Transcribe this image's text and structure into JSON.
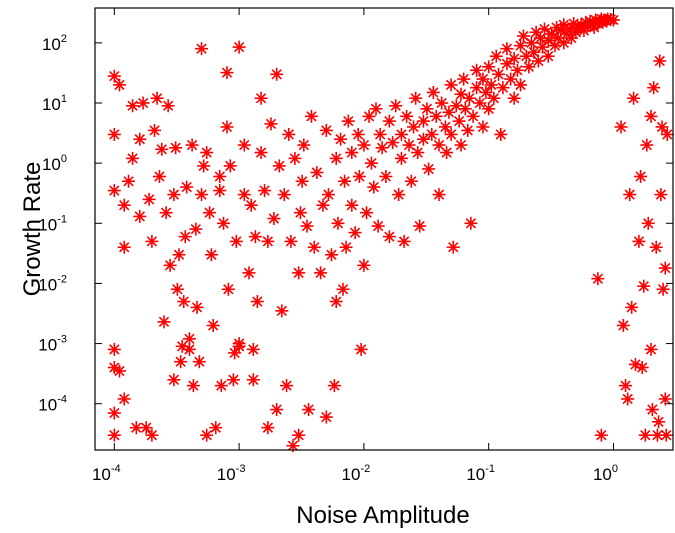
{
  "chart_data": {
    "type": "scatter",
    "title": "",
    "xlabel": "Noise Amplitude",
    "ylabel": "Growth Rate",
    "xscale": "log",
    "yscale": "log",
    "xlim": [
      7e-05,
      3
    ],
    "ylim": [
      1.7e-05,
      380
    ],
    "grid": false,
    "marker": "asterisk",
    "marker_color": "#ff0000",
    "x_ticks": [
      {
        "base": "10",
        "exp": "-4",
        "value": 0.0001
      },
      {
        "base": "10",
        "exp": "-3",
        "value": 0.001
      },
      {
        "base": "10",
        "exp": "-2",
        "value": 0.01
      },
      {
        "base": "10",
        "exp": "-1",
        "value": 0.1
      },
      {
        "base": "10",
        "exp": "0",
        "value": 1
      }
    ],
    "y_ticks": [
      {
        "base": "10",
        "exp": "-4",
        "value": 0.0001
      },
      {
        "base": "10",
        "exp": "-3",
        "value": 0.001
      },
      {
        "base": "10",
        "exp": "-2",
        "value": 0.01
      },
      {
        "base": "10",
        "exp": "-1",
        "value": 0.1
      },
      {
        "base": "10",
        "exp": "0",
        "value": 1
      },
      {
        "base": "10",
        "exp": "1",
        "value": 10
      },
      {
        "base": "10",
        "exp": "2",
        "value": 100
      }
    ],
    "series": [
      {
        "points": [
          [
            0.0001,
            28
          ],
          [
            0.0001,
            3
          ],
          [
            0.0001,
            0.35
          ],
          [
            0.0001,
            7e-05
          ],
          [
            0.0001,
            0.0008
          ],
          [
            0.0001,
            0.0004
          ],
          [
            0.0001,
            3e-05
          ],
          [
            0.00011,
            20
          ],
          [
            0.00011,
            0.00035
          ],
          [
            0.00012,
            0.00012
          ],
          [
            0.00012,
            0.04
          ],
          [
            0.00012,
            0.2
          ],
          [
            0.00013,
            0.5
          ],
          [
            0.00014,
            9
          ],
          [
            0.00014,
            1.2
          ],
          [
            0.00015,
            4e-05
          ],
          [
            0.00016,
            0.13
          ],
          [
            0.00016,
            2.5
          ],
          [
            0.00017,
            10
          ],
          [
            0.00018,
            4e-05
          ],
          [
            0.00019,
            0.25
          ],
          [
            0.0002,
            0.05
          ],
          [
            0.0002,
            3e-05
          ],
          [
            0.00021,
            3.5
          ],
          [
            0.00022,
            12
          ],
          [
            0.00023,
            0.6
          ],
          [
            0.00024,
            1.7
          ],
          [
            0.00025,
            0.0023
          ],
          [
            0.00026,
            0.15
          ],
          [
            0.00027,
            9
          ],
          [
            0.00028,
            0.02
          ],
          [
            0.0003,
            0.3
          ],
          [
            0.0003,
            0.00025
          ],
          [
            0.00031,
            1.8
          ],
          [
            0.00032,
            0.008
          ],
          [
            0.00033,
            0.03
          ],
          [
            0.00034,
            0.0005
          ],
          [
            0.00035,
            0.0009
          ],
          [
            0.00036,
            0.005
          ],
          [
            0.00037,
            0.06
          ],
          [
            0.00038,
            0.4
          ],
          [
            0.0004,
            0.0008
          ],
          [
            0.0004,
            0.0012
          ],
          [
            0.00042,
            2
          ],
          [
            0.00043,
            0.0002
          ],
          [
            0.00045,
            0.08
          ],
          [
            0.00046,
            0.004
          ],
          [
            0.00048,
            0.0005
          ],
          [
            0.0005,
            80
          ],
          [
            0.0005,
            0.3
          ],
          [
            0.00052,
            0.9
          ],
          [
            0.00055,
            1.5
          ],
          [
            0.00055,
            3e-05
          ],
          [
            0.00058,
            0.15
          ],
          [
            0.0006,
            0.03
          ],
          [
            0.00062,
            0.002
          ],
          [
            0.00065,
            4e-05
          ],
          [
            0.0007,
            0.6
          ],
          [
            0.0007,
            0.35
          ],
          [
            0.00072,
            0.0002
          ],
          [
            0.00075,
            0.1
          ],
          [
            0.0008,
            4
          ],
          [
            0.0008,
            32
          ],
          [
            0.00082,
            0.008
          ],
          [
            0.00085,
            0.9
          ],
          [
            0.0009,
            0.00025
          ],
          [
            0.00092,
            0.0007
          ],
          [
            0.00095,
            0.05
          ],
          [
            0.001,
            85
          ],
          [
            0.001,
            0.001
          ],
          [
            0.001,
            0.0009
          ],
          [
            0.0011,
            0.3
          ],
          [
            0.0011,
            2
          ],
          [
            0.0012,
            0.015
          ],
          [
            0.00125,
            0.2
          ],
          [
            0.0013,
            0.00025
          ],
          [
            0.0013,
            0.0008
          ],
          [
            0.00135,
            0.06
          ],
          [
            0.0014,
            0.005
          ],
          [
            0.0015,
            12
          ],
          [
            0.0015,
            1.5
          ],
          [
            0.0016,
            0.35
          ],
          [
            0.0017,
            4e-05
          ],
          [
            0.0017,
            0.05
          ],
          [
            0.0018,
            4.5
          ],
          [
            0.0019,
            0.12
          ],
          [
            0.002,
            8e-05
          ],
          [
            0.002,
            30
          ],
          [
            0.0021,
            0.9
          ],
          [
            0.0022,
            0.0035
          ],
          [
            0.0023,
            0.3
          ],
          [
            0.0024,
            0.0002
          ],
          [
            0.0025,
            3
          ],
          [
            0.0026,
            0.05
          ],
          [
            0.0027,
            2e-05
          ],
          [
            0.0028,
            1.2
          ],
          [
            0.003,
            3e-05
          ],
          [
            0.003,
            0.015
          ],
          [
            0.0031,
            0.15
          ],
          [
            0.0032,
            0.5
          ],
          [
            0.0033,
            2
          ],
          [
            0.0035,
            0.09
          ],
          [
            0.0036,
            8e-05
          ],
          [
            0.0038,
            6
          ],
          [
            0.004,
            0.04
          ],
          [
            0.0042,
            0.7
          ],
          [
            0.0045,
            0.015
          ],
          [
            0.0047,
            0.2
          ],
          [
            0.005,
            6e-05
          ],
          [
            0.005,
            3.5
          ],
          [
            0.0052,
            0.3
          ],
          [
            0.0055,
            0.03
          ],
          [
            0.0058,
            0.0002
          ],
          [
            0.006,
            1.2
          ],
          [
            0.006,
            0.005
          ],
          [
            0.0062,
            0.1
          ],
          [
            0.0065,
            2.5
          ],
          [
            0.0068,
            0.008
          ],
          [
            0.007,
            0.5
          ],
          [
            0.0072,
            0.04
          ],
          [
            0.0075,
            5
          ],
          [
            0.008,
            0.2
          ],
          [
            0.008,
            1.5
          ],
          [
            0.0085,
            0.07
          ],
          [
            0.009,
            3
          ],
          [
            0.0092,
            0.6
          ],
          [
            0.0095,
            0.0008
          ],
          [
            0.01,
            0.02
          ],
          [
            0.01,
            2
          ],
          [
            0.0105,
            0.15
          ],
          [
            0.011,
            6
          ],
          [
            0.0115,
            1
          ],
          [
            0.012,
            0.4
          ],
          [
            0.0125,
            8
          ],
          [
            0.013,
            0.09
          ],
          [
            0.0135,
            3
          ],
          [
            0.014,
            1.8
          ],
          [
            0.015,
            0.6
          ],
          [
            0.016,
            0.06
          ],
          [
            0.016,
            5
          ],
          [
            0.017,
            2.2
          ],
          [
            0.018,
            9
          ],
          [
            0.019,
            0.3
          ],
          [
            0.02,
            3
          ],
          [
            0.02,
            1.2
          ],
          [
            0.021,
            0.05
          ],
          [
            0.022,
            6
          ],
          [
            0.023,
            2
          ],
          [
            0.024,
            0.5
          ],
          [
            0.025,
            4
          ],
          [
            0.026,
            12
          ],
          [
            0.027,
            1.5
          ],
          [
            0.028,
            0.09
          ],
          [
            0.03,
            5
          ],
          [
            0.03,
            2.5
          ],
          [
            0.032,
            8
          ],
          [
            0.033,
            0.8
          ],
          [
            0.035,
            3
          ],
          [
            0.036,
            15
          ],
          [
            0.038,
            6
          ],
          [
            0.04,
            2
          ],
          [
            0.04,
            0.3
          ],
          [
            0.042,
            10
          ],
          [
            0.045,
            4
          ],
          [
            0.046,
            1.5
          ],
          [
            0.048,
            7
          ],
          [
            0.05,
            20
          ],
          [
            0.05,
            3
          ],
          [
            0.052,
            0.04
          ],
          [
            0.055,
            9
          ],
          [
            0.058,
            5
          ],
          [
            0.06,
            2
          ],
          [
            0.06,
            14
          ],
          [
            0.063,
            25
          ],
          [
            0.065,
            8
          ],
          [
            0.068,
            3.5
          ],
          [
            0.07,
            12
          ],
          [
            0.072,
            0.1
          ],
          [
            0.075,
            6
          ],
          [
            0.08,
            18
          ],
          [
            0.08,
            35
          ],
          [
            0.085,
            10
          ],
          [
            0.09,
            4
          ],
          [
            0.09,
            25
          ],
          [
            0.095,
            15
          ],
          [
            0.1,
            8
          ],
          [
            0.1,
            40
          ],
          [
            0.105,
            20
          ],
          [
            0.11,
            12
          ],
          [
            0.115,
            60
          ],
          [
            0.12,
            30
          ],
          [
            0.125,
            3
          ],
          [
            0.13,
            18
          ],
          [
            0.14,
            45
          ],
          [
            0.14,
            80
          ],
          [
            0.15,
            25
          ],
          [
            0.16,
            12
          ],
          [
            0.16,
            55
          ],
          [
            0.17,
            35
          ],
          [
            0.18,
            90
          ],
          [
            0.18,
            20
          ],
          [
            0.19,
            130
          ],
          [
            0.2,
            60
          ],
          [
            0.21,
            40
          ],
          [
            0.22,
            100
          ],
          [
            0.23,
            70
          ],
          [
            0.24,
            150
          ],
          [
            0.25,
            50
          ],
          [
            0.26,
            120
          ],
          [
            0.27,
            85
          ],
          [
            0.28,
            170
          ],
          [
            0.3,
            110
          ],
          [
            0.3,
            60
          ],
          [
            0.32,
            140
          ],
          [
            0.34,
            90
          ],
          [
            0.35,
            180
          ],
          [
            0.36,
            120
          ],
          [
            0.38,
            160
          ],
          [
            0.4,
            100
          ],
          [
            0.4,
            200
          ],
          [
            0.42,
            140
          ],
          [
            0.45,
            170
          ],
          [
            0.46,
            120
          ],
          [
            0.48,
            210
          ],
          [
            0.5,
            150
          ],
          [
            0.52,
            180
          ],
          [
            0.55,
            200
          ],
          [
            0.58,
            160
          ],
          [
            0.6,
            220
          ],
          [
            0.62,
            190
          ],
          [
            0.65,
            230
          ],
          [
            0.68,
            200
          ],
          [
            0.7,
            180
          ],
          [
            0.72,
            240
          ],
          [
            0.75,
            210
          ],
          [
            0.78,
            230
          ],
          [
            0.8,
            250
          ],
          [
            0.82,
            220
          ],
          [
            0.85,
            240
          ],
          [
            0.88,
            230
          ],
          [
            0.9,
            250
          ],
          [
            0.95,
            245
          ],
          [
            1,
            240
          ],
          [
            0.75,
            0.012
          ],
          [
            0.8,
            3e-05
          ],
          [
            1.15,
            4
          ],
          [
            1.2,
            0.002
          ],
          [
            1.25,
            0.0002
          ],
          [
            1.3,
            0.00012
          ],
          [
            1.35,
            0.3
          ],
          [
            1.4,
            0.004
          ],
          [
            1.45,
            12
          ],
          [
            1.5,
            0.00045
          ],
          [
            1.6,
            0.05
          ],
          [
            1.65,
            0.6
          ],
          [
            1.7,
            0.0004
          ],
          [
            1.75,
            0.009
          ],
          [
            1.8,
            3e-05
          ],
          [
            1.85,
            2
          ],
          [
            1.9,
            0.1
          ],
          [
            2,
            6
          ],
          [
            2,
            0.0008
          ],
          [
            2.05,
            8e-05
          ],
          [
            2.1,
            18
          ],
          [
            2.2,
            0.04
          ],
          [
            2.25,
            3e-05
          ],
          [
            2.3,
            5e-05
          ],
          [
            2.35,
            50
          ],
          [
            2.4,
            0.3
          ],
          [
            2.45,
            4
          ],
          [
            2.5,
            0.008
          ],
          [
            2.6,
            0.018
          ],
          [
            2.6,
            0.00012
          ],
          [
            2.65,
            3e-05
          ],
          [
            2.7,
            3
          ]
        ]
      }
    ]
  }
}
